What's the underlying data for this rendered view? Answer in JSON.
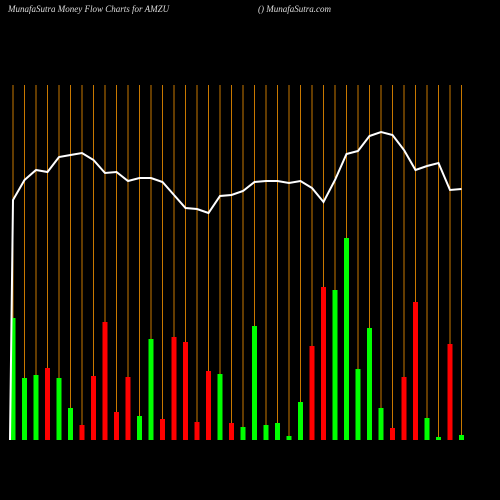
{
  "chart_data": {
    "type": "bar",
    "title": "MunafaSutra  Money Flow  Charts for AMZU",
    "subtitle": "() MunafaSutra.com",
    "categories": [
      null,
      null,
      null,
      null,
      null,
      null,
      null,
      null,
      null,
      null,
      null,
      null,
      null,
      null,
      null,
      null,
      null,
      null,
      null,
      null,
      null,
      null,
      null,
      null,
      null,
      null,
      null,
      null,
      null,
      null,
      null,
      null,
      null,
      null,
      null,
      null,
      null,
      null,
      null,
      null
    ],
    "values": [
      122,
      62,
      65,
      72,
      62,
      32,
      15,
      64,
      118,
      28,
      63,
      24,
      101,
      21,
      103,
      98,
      18,
      69,
      66,
      17,
      13,
      114,
      15,
      17,
      4,
      38,
      94,
      153,
      150,
      202,
      71,
      112,
      32,
      12,
      63,
      138,
      22,
      3,
      96,
      5
    ],
    "bar_colors": [
      "#00ff00",
      "#00ff00",
      "#00ff00",
      "#ff0000",
      "#00ff00",
      "#00ff00",
      "#ff0000",
      "#ff0000",
      "#ff0000",
      "#ff0000",
      "#ff0000",
      "#00ff00",
      "#00ff00",
      "#ff0000",
      "#ff0000",
      "#ff0000",
      "#ff0000",
      "#ff0000",
      "#00ff00",
      "#ff0000",
      "#00ff00",
      "#00ff00",
      "#00ff00",
      "#00ff00",
      "#00ff00",
      "#00ff00",
      "#ff0000",
      "#ff0000",
      "#00ff00",
      "#00ff00",
      "#00ff00",
      "#00ff00",
      "#00ff00",
      "#ff0000",
      "#ff0000",
      "#ff0000",
      "#00ff00",
      "#00ff00",
      "#ff0000",
      "#00ff00"
    ],
    "line_values": [
      240,
      260,
      270,
      268,
      283,
      285,
      287,
      280,
      267,
      268,
      259,
      262,
      262,
      258,
      245,
      232,
      231,
      227,
      244,
      245,
      249,
      258,
      259,
      259,
      257,
      259,
      252,
      238,
      260,
      286,
      289,
      304,
      308,
      305,
      290,
      270,
      274,
      277,
      250,
      251
    ],
    "line_color": "#ffffff",
    "grid_color": "#c87800",
    "ylim": [
      0,
      440
    ]
  }
}
